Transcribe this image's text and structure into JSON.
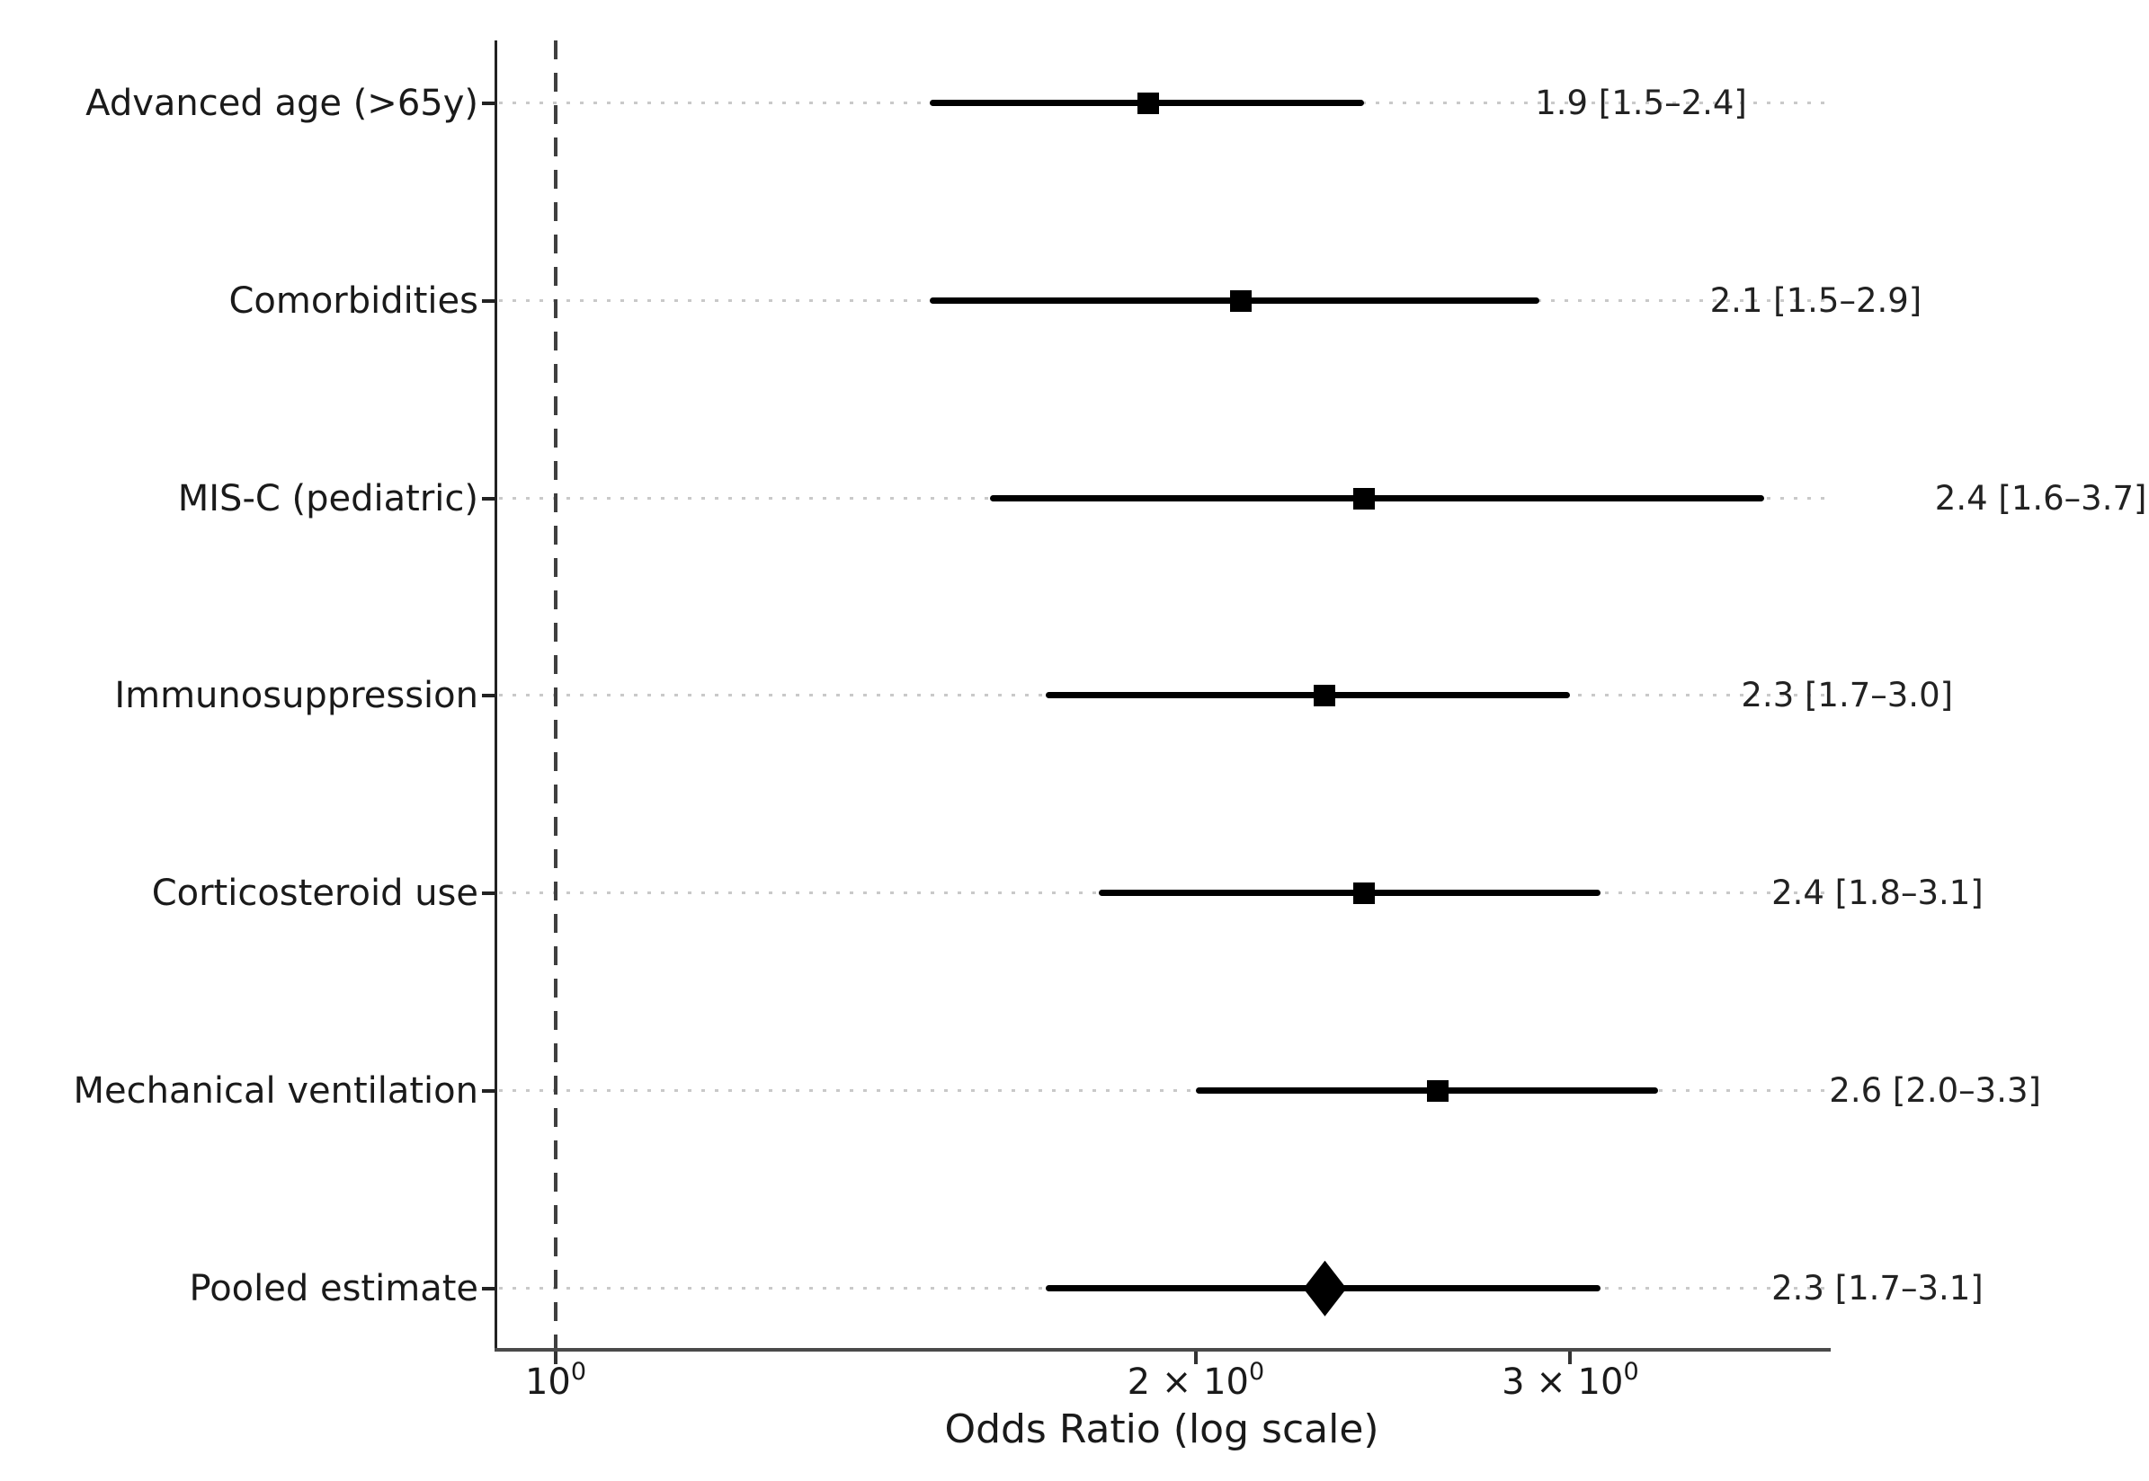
{
  "figure": {
    "background": "#ffffff"
  },
  "chart_data": {
    "type": "scatter",
    "variant": "forest_plot",
    "title": "",
    "xlabel": "Odds Ratio (log scale)",
    "ylabel": "",
    "x_scale": "log",
    "xlim": [
      0.94,
      3.95
    ],
    "grid": "horizontal-dotted",
    "legend": "none",
    "reference_line_value": 1.0,
    "x_ticks": [
      {
        "value": 1,
        "prefix": "",
        "base": "10",
        "exp": "0"
      },
      {
        "value": 2,
        "prefix": "2 × ",
        "base": "10",
        "exp": "0"
      },
      {
        "value": 3,
        "prefix": "3 × ",
        "base": "10",
        "exp": "0"
      }
    ],
    "rows": [
      {
        "category": "Advanced age (>65y)",
        "or": 1.9,
        "ci_low": 1.5,
        "ci_high": 2.4,
        "label": "1.9 [1.5–2.4]",
        "marker": "square"
      },
      {
        "category": "Comorbidities",
        "or": 2.1,
        "ci_low": 1.5,
        "ci_high": 2.9,
        "label": "2.1 [1.5–2.9]",
        "marker": "square"
      },
      {
        "category": "MIS-C (pediatric)",
        "or": 2.4,
        "ci_low": 1.6,
        "ci_high": 3.7,
        "label": "2.4 [1.6–3.7]",
        "marker": "square"
      },
      {
        "category": "Immunosuppression",
        "or": 2.3,
        "ci_low": 1.7,
        "ci_high": 3.0,
        "label": "2.3 [1.7–3.0]",
        "marker": "square"
      },
      {
        "category": "Corticosteroid use",
        "or": 2.4,
        "ci_low": 1.8,
        "ci_high": 3.1,
        "label": "2.4 [1.8–3.1]",
        "marker": "square"
      },
      {
        "category": "Mechanical ventilation",
        "or": 2.6,
        "ci_low": 2.0,
        "ci_high": 3.3,
        "label": "2.6 [2.0–3.3]",
        "marker": "square"
      },
      {
        "category": "Pooled estimate",
        "or": 2.3,
        "ci_low": 1.7,
        "ci_high": 3.1,
        "label": "2.3 [1.7–3.1]",
        "marker": "diamond"
      }
    ]
  },
  "colors": {
    "marker": "#000000",
    "whisker": "#000000",
    "gridline": "#c9c9c9",
    "reference_line": "#3f3f3f",
    "y_spine": "#222222",
    "x_spine": "#4a4a4a",
    "text": "#1a1a1a",
    "background": "#ffffff"
  }
}
